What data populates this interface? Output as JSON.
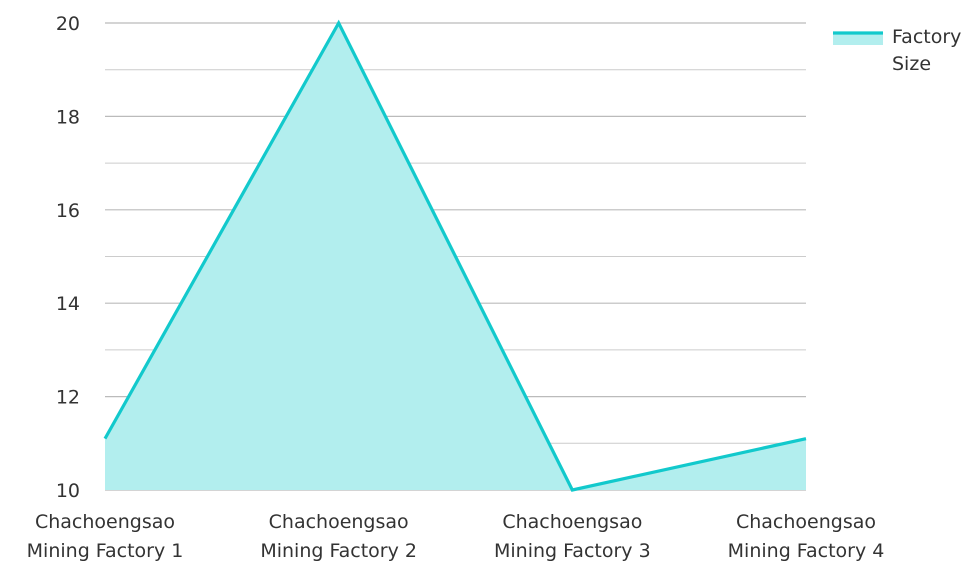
{
  "chart_data": {
    "type": "area",
    "categories": [
      [
        "Chachoengsao",
        "Mining Factory 1"
      ],
      [
        "Chachoengsao",
        "Mining Factory 2"
      ],
      [
        "Chachoengsao",
        "Mining Factory 3"
      ],
      [
        "Chachoengsao",
        "Mining Factory 4"
      ]
    ],
    "series": [
      {
        "name": "Factory Size",
        "legend_lines": [
          "Factory",
          "Size"
        ],
        "values": [
          11.1,
          20,
          10,
          11.1
        ]
      }
    ],
    "ylim": [
      10,
      20
    ],
    "yticks": [
      10,
      12,
      14,
      16,
      18,
      20
    ],
    "grid": true,
    "legend_position": "top-right",
    "colors": {
      "line": "#12c9cc",
      "fill": "#b2eeee",
      "grid": "#cccccc",
      "grid_major": "#bbbbbb",
      "text": "#333333"
    }
  }
}
